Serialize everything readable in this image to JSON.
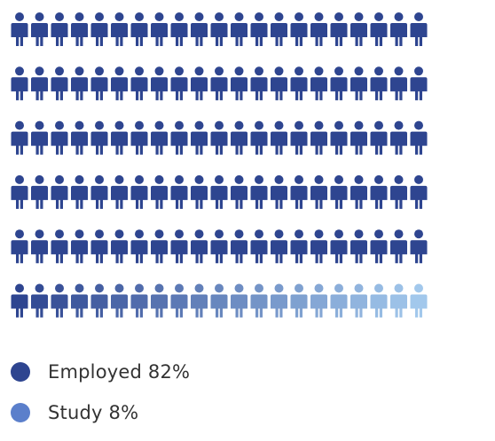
{
  "chart_data": {
    "type": "pictogram",
    "icon": "person-icon",
    "rows": 6,
    "series": [
      {
        "name": "Employed",
        "value": 82,
        "color": "#2e4590"
      },
      {
        "name": "Study",
        "value": 8,
        "color": "#5b7fcb"
      }
    ],
    "legend_position": "bottom-left",
    "gradient_colors": [
      "#2e4590",
      "#a2c8ec"
    ]
  },
  "legend": [
    {
      "label": "Employed 82%",
      "color": "#2e4590"
    },
    {
      "label": "Study 8%",
      "color": "#5b7fcb"
    }
  ]
}
